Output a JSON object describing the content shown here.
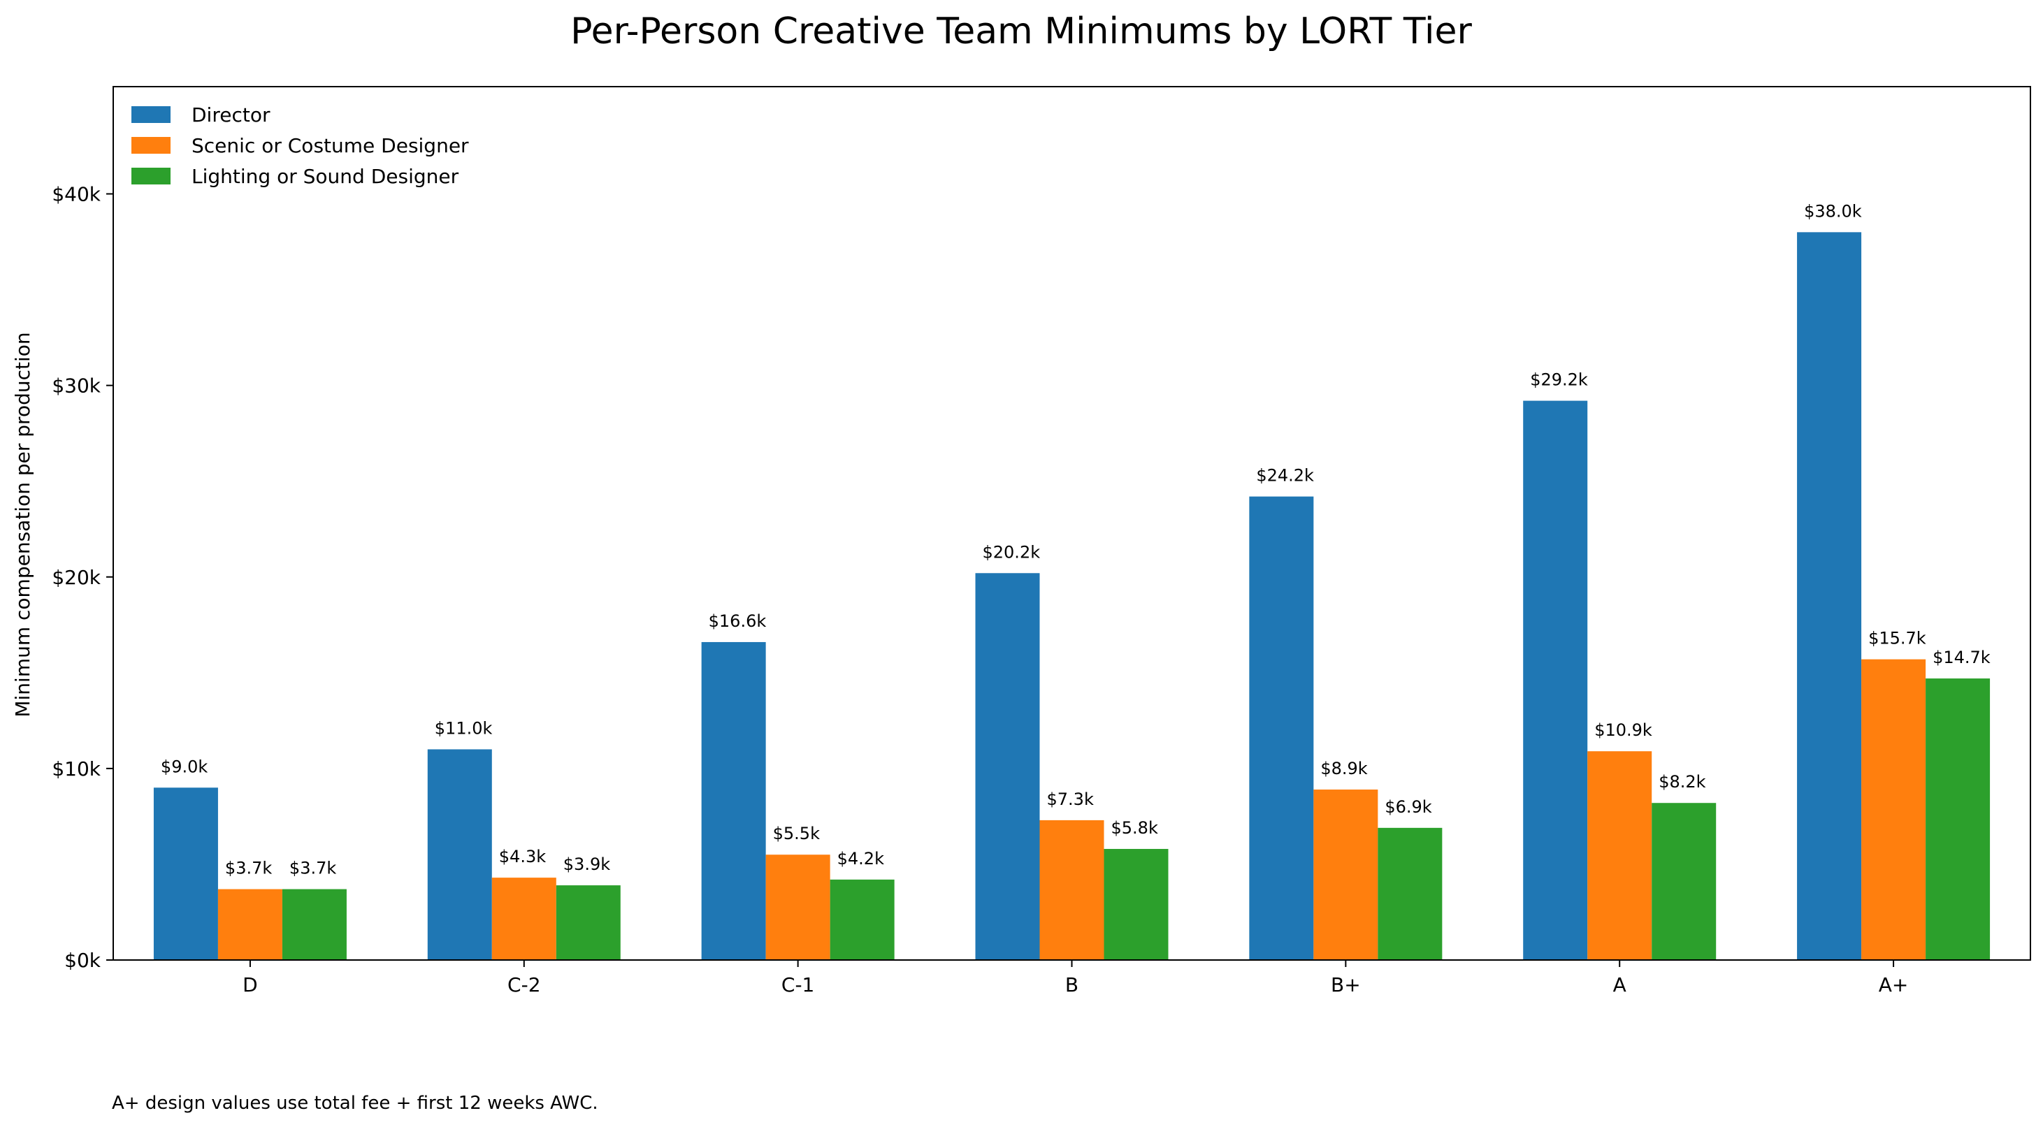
{
  "chart_data": {
    "type": "bar",
    "title": "Per-Person Creative Team Minimums by LORT Tier",
    "xlabel": "",
    "ylabel": "Minimum compensation per production",
    "categories": [
      "D",
      "C-2",
      "C-1",
      "B",
      "B+",
      "A",
      "A+"
    ],
    "series": [
      {
        "name": "Director",
        "color": "#1f77b4",
        "values": [
          9000,
          11000,
          16600,
          20200,
          24200,
          29200,
          38000
        ],
        "labels": [
          "$9.0k",
          "$11.0k",
          "$16.6k",
          "$20.2k",
          "$24.2k",
          "$29.2k",
          "$38.0k"
        ]
      },
      {
        "name": "Scenic or Costume Designer",
        "color": "#ff7f0e",
        "values": [
          3700,
          4300,
          5500,
          7300,
          8900,
          10900,
          15700
        ],
        "labels": [
          "$3.7k",
          "$4.3k",
          "$5.5k",
          "$7.3k",
          "$8.9k",
          "$10.9k",
          "$15.7k"
        ]
      },
      {
        "name": "Lighting or Sound Designer",
        "color": "#2ca02c",
        "values": [
          3700,
          3900,
          4200,
          5800,
          6900,
          8200,
          14700
        ],
        "labels": [
          "$3.7k",
          "$3.9k",
          "$4.2k",
          "$5.8k",
          "$6.9k",
          "$8.2k",
          "$14.7k"
        ]
      }
    ],
    "ylim": [
      0,
      45600
    ],
    "yticks": [
      0,
      10000,
      20000,
      30000,
      40000
    ],
    "ytick_labels": [
      "$0k",
      "$10k",
      "$20k",
      "$30k",
      "$40k"
    ],
    "grid": false,
    "legend_position": "top-left",
    "footnote": "A+ design values use total fee + first 12 weeks AWC."
  }
}
